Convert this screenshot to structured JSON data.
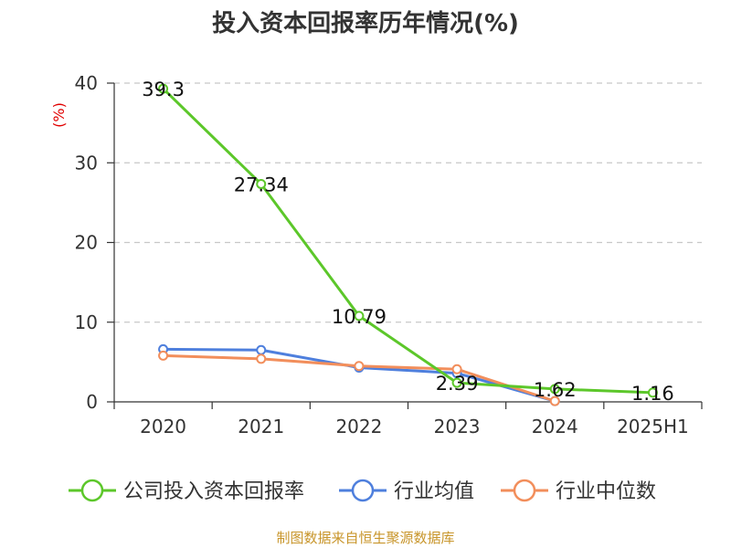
{
  "chart_data": {
    "type": "line",
    "title": "投入资本回报率历年情况(%)",
    "ylabel": "(%)",
    "xlabel": "",
    "categories": [
      "2020",
      "2021",
      "2022",
      "2023",
      "2024",
      "2025H1"
    ],
    "ylim": [
      0,
      40
    ],
    "yticks": [
      0,
      10,
      20,
      30,
      40
    ],
    "grid": true,
    "legend_position": "bottom",
    "series": [
      {
        "name": "公司投入资本回报率",
        "color": "#5cc72a",
        "values": [
          39.3,
          27.34,
          10.79,
          2.39,
          1.62,
          1.16
        ],
        "labels": [
          "39.3",
          "27.34",
          "10.79",
          "2.39",
          "1.62",
          "1.16"
        ]
      },
      {
        "name": "行业均值",
        "color": "#4e7fdd",
        "values": [
          6.6,
          6.5,
          4.3,
          3.6,
          0.1,
          null
        ]
      },
      {
        "name": "行业中位数",
        "color": "#f28e5b",
        "values": [
          5.8,
          5.4,
          4.5,
          4.1,
          0.1,
          null
        ]
      }
    ]
  },
  "source": "制图数据来自恒生聚源数据库"
}
